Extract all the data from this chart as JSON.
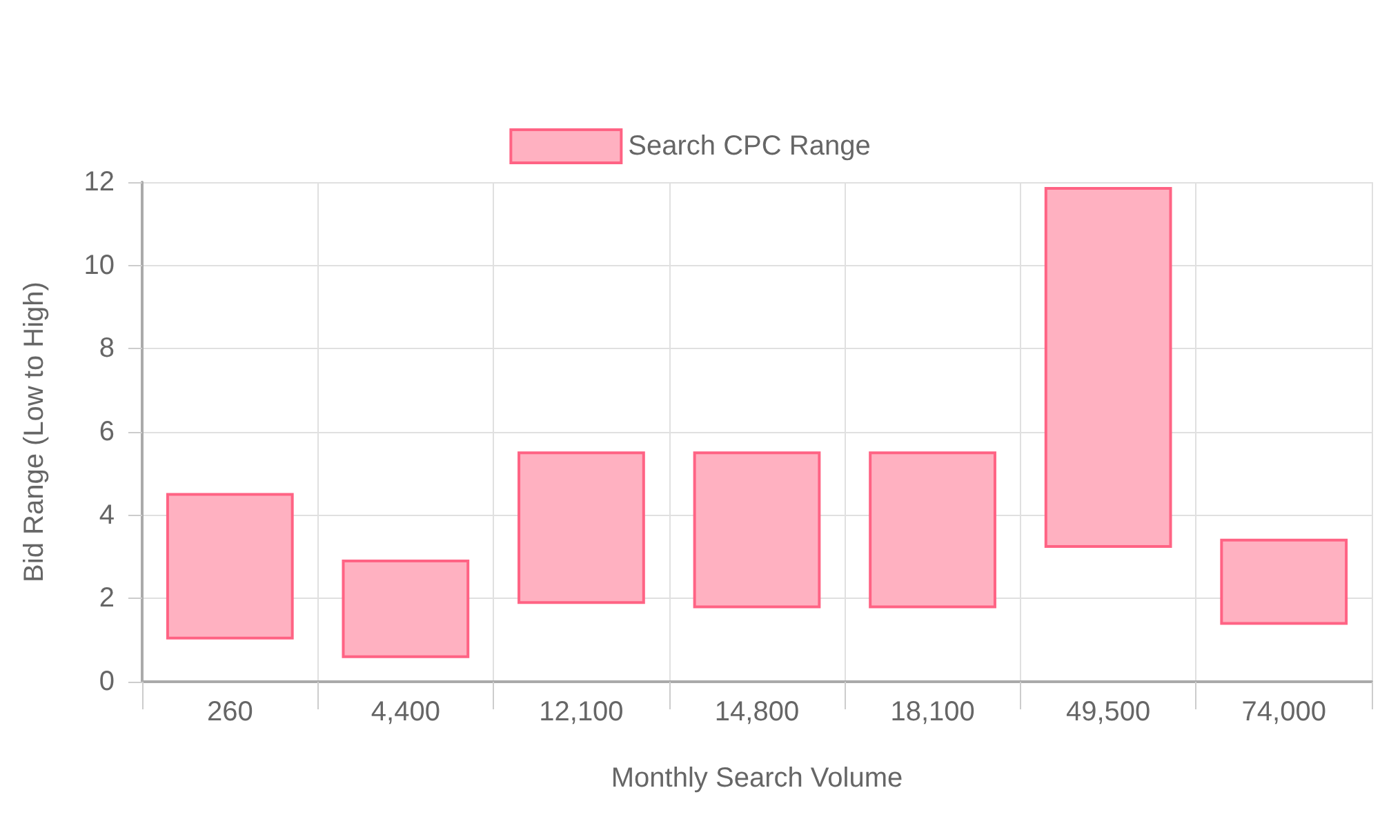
{
  "chart_data": {
    "type": "bar",
    "xlabel": "Monthly Search Volume",
    "ylabel": "Bid Range (Low to High)",
    "categories": [
      "260",
      "4,400",
      "12,100",
      "14,800",
      "18,100",
      "49,500",
      "74,000"
    ],
    "series": [
      {
        "name": "Search CPC Range",
        "color": "#ffb1c1",
        "base": [
          1.05,
          0.6,
          1.9,
          1.8,
          1.8,
          3.25,
          1.4
        ],
        "values": [
          3.45,
          2.3,
          3.6,
          3.7,
          3.7,
          8.6,
          2.0
        ]
      }
    ],
    "ylim": [
      0,
      12
    ],
    "yticks": [
      0,
      2,
      4,
      6,
      8,
      10,
      12
    ],
    "grid": true,
    "legend": "top"
  }
}
